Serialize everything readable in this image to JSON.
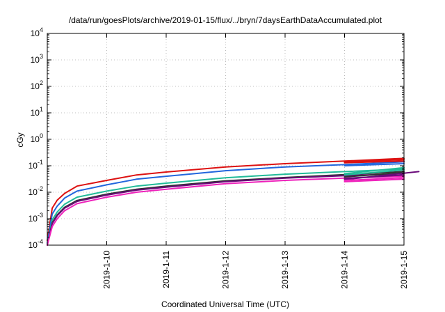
{
  "chart_data": {
    "type": "line",
    "title": "/data/run/goesPlots/archive/2019-01-15/flux/../bryn/7daysEarthDataAccumulated.plot",
    "xlabel": "Coordinated Universal Time (UTC)",
    "ylabel": "cGy",
    "y_scale": "log",
    "ylim": [
      0.0001,
      10000
    ],
    "y_ticks": [
      {
        "value": 0.0001,
        "base": "10",
        "exp": "-4"
      },
      {
        "value": 0.001,
        "base": "10",
        "exp": "-3"
      },
      {
        "value": 0.01,
        "base": "10",
        "exp": "-2"
      },
      {
        "value": 0.1,
        "base": "10",
        "exp": "-1"
      },
      {
        "value": 1,
        "base": "10",
        "exp": "0"
      },
      {
        "value": 10,
        "base": "10",
        "exp": "1"
      },
      {
        "value": 100,
        "base": "10",
        "exp": "2"
      },
      {
        "value": 1000,
        "base": "10",
        "exp": "3"
      },
      {
        "value": 10000,
        "base": "10",
        "exp": "4"
      }
    ],
    "xlim": [
      "2019-01-09 00:00",
      "2019-01-15 00:00"
    ],
    "x_ticks": [
      "2019-1-10",
      "2019-1-11",
      "2019-1-12",
      "2019-1-13",
      "2019-1-14",
      "2019-1-15"
    ],
    "grid": true,
    "legend": "none",
    "series": [
      {
        "color": "#dd1111",
        "x": [
          "2019-01-09 00:00",
          "2019-01-09 02:00",
          "2019-01-09 04:00",
          "2019-01-09 07:00",
          "2019-01-09 12:00",
          "2019-01-10 00:00",
          "2019-01-10 12:00",
          "2019-01-11 00:00",
          "2019-01-12 00:00",
          "2019-01-13 00:00",
          "2019-01-14 00:00",
          "2019-01-15 00:00"
        ],
        "y": [
          0.00015,
          0.0025,
          0.005,
          0.009,
          0.017,
          0.028,
          0.045,
          0.058,
          0.09,
          0.12,
          0.15,
          0.19
        ]
      },
      {
        "color": "#2266dd",
        "x": [
          "2019-01-09 00:00",
          "2019-01-09 02:00",
          "2019-01-09 04:00",
          "2019-01-09 07:00",
          "2019-01-09 12:00",
          "2019-01-10 00:00",
          "2019-01-10 12:00",
          "2019-01-11 00:00",
          "2019-01-12 00:00",
          "2019-01-13 00:00",
          "2019-01-14 00:00",
          "2019-01-15 00:00"
        ],
        "y": [
          0.00012,
          0.0015,
          0.003,
          0.006,
          0.011,
          0.019,
          0.031,
          0.04,
          0.065,
          0.09,
          0.11,
          0.14
        ]
      },
      {
        "color": "#22bb99",
        "x": [
          "2019-01-09 00:00",
          "2019-01-09 02:00",
          "2019-01-09 04:00",
          "2019-01-09 07:00",
          "2019-01-09 12:00",
          "2019-01-10 00:00",
          "2019-01-10 12:00",
          "2019-01-11 00:00",
          "2019-01-12 00:00",
          "2019-01-13 00:00",
          "2019-01-14 00:00",
          "2019-01-15 00:00"
        ],
        "y": [
          0.0001,
          0.0009,
          0.0018,
          0.0035,
          0.0065,
          0.011,
          0.017,
          0.022,
          0.035,
          0.048,
          0.06,
          0.075
        ]
      },
      {
        "color": "#333333",
        "x": [
          "2019-01-09 00:00",
          "2019-01-09 02:00",
          "2019-01-09 04:00",
          "2019-01-09 07:00",
          "2019-01-09 12:00",
          "2019-01-10 00:00",
          "2019-01-10 12:00",
          "2019-01-11 00:00",
          "2019-01-12 00:00",
          "2019-01-13 00:00",
          "2019-01-14 00:00",
          "2019-01-15 00:00"
        ],
        "y": [
          0.0001,
          0.0007,
          0.0014,
          0.0027,
          0.0049,
          0.0085,
          0.013,
          0.017,
          0.027,
          0.036,
          0.046,
          0.06
        ]
      },
      {
        "color": "#6a0a7a",
        "x": [
          "2019-01-09 00:00",
          "2019-01-09 02:00",
          "2019-01-09 04:00",
          "2019-01-09 07:00",
          "2019-01-09 12:00",
          "2019-01-10 00:00",
          "2019-01-10 12:00",
          "2019-01-11 00:00",
          "2019-01-12 00:00",
          "2019-01-13 00:00",
          "2019-01-14 00:00",
          "2019-01-15 00:00"
        ],
        "y": [
          0.0001,
          0.00065,
          0.0013,
          0.0025,
          0.0045,
          0.0078,
          0.012,
          0.0155,
          0.025,
          0.034,
          0.042,
          0.05
        ]
      },
      {
        "color": "#ee22bb",
        "x": [
          "2019-01-09 00:00",
          "2019-01-09 02:00",
          "2019-01-09 04:00",
          "2019-01-09 07:00",
          "2019-01-09 12:00",
          "2019-01-10 00:00",
          "2019-01-10 12:00",
          "2019-01-11 00:00",
          "2019-01-12 00:00",
          "2019-01-13 00:00",
          "2019-01-14 00:00",
          "2019-01-15 00:00"
        ],
        "y": [
          0.0001,
          0.0005,
          0.001,
          0.002,
          0.0037,
          0.0065,
          0.01,
          0.013,
          0.021,
          0.028,
          0.034,
          0.04
        ]
      },
      {
        "color": "#dd1111",
        "x": [
          "2019-01-14 00:00",
          "2019-01-15 00:00"
        ],
        "y": [
          0.14,
          0.17
        ]
      },
      {
        "color": "#dd1111",
        "x": [
          "2019-01-14 00:00",
          "2019-01-15 00:00"
        ],
        "y": [
          0.13,
          0.15
        ]
      },
      {
        "color": "#2266dd",
        "x": [
          "2019-01-14 00:00",
          "2019-01-15 00:00"
        ],
        "y": [
          0.1,
          0.12
        ]
      },
      {
        "color": "#22bb99",
        "x": [
          "2019-01-14 00:00",
          "2019-01-15 00:00"
        ],
        "y": [
          0.05,
          0.085
        ]
      },
      {
        "color": "#22bb99",
        "x": [
          "2019-01-14 00:00",
          "2019-01-15 00:00"
        ],
        "y": [
          0.045,
          0.07
        ]
      },
      {
        "color": "#333333",
        "x": [
          "2019-01-14 00:00",
          "2019-01-15 00:00"
        ],
        "y": [
          0.038,
          0.055
        ]
      },
      {
        "color": "#6a0a7a",
        "x": [
          "2019-01-14 00:00",
          "2019-01-15 00:00"
        ],
        "y": [
          0.033,
          0.045
        ]
      },
      {
        "color": "#6a0a7a",
        "x": [
          "2019-01-14 00:00",
          "2019-01-15 06:00"
        ],
        "y": [
          0.03,
          0.06
        ]
      },
      {
        "color": "#ee22bb",
        "x": [
          "2019-01-14 00:00",
          "2019-01-15 00:00"
        ],
        "y": [
          0.028,
          0.035
        ]
      },
      {
        "color": "#ee22bb",
        "x": [
          "2019-01-14 00:00",
          "2019-01-15 00:00"
        ],
        "y": [
          0.025,
          0.031
        ]
      }
    ]
  }
}
